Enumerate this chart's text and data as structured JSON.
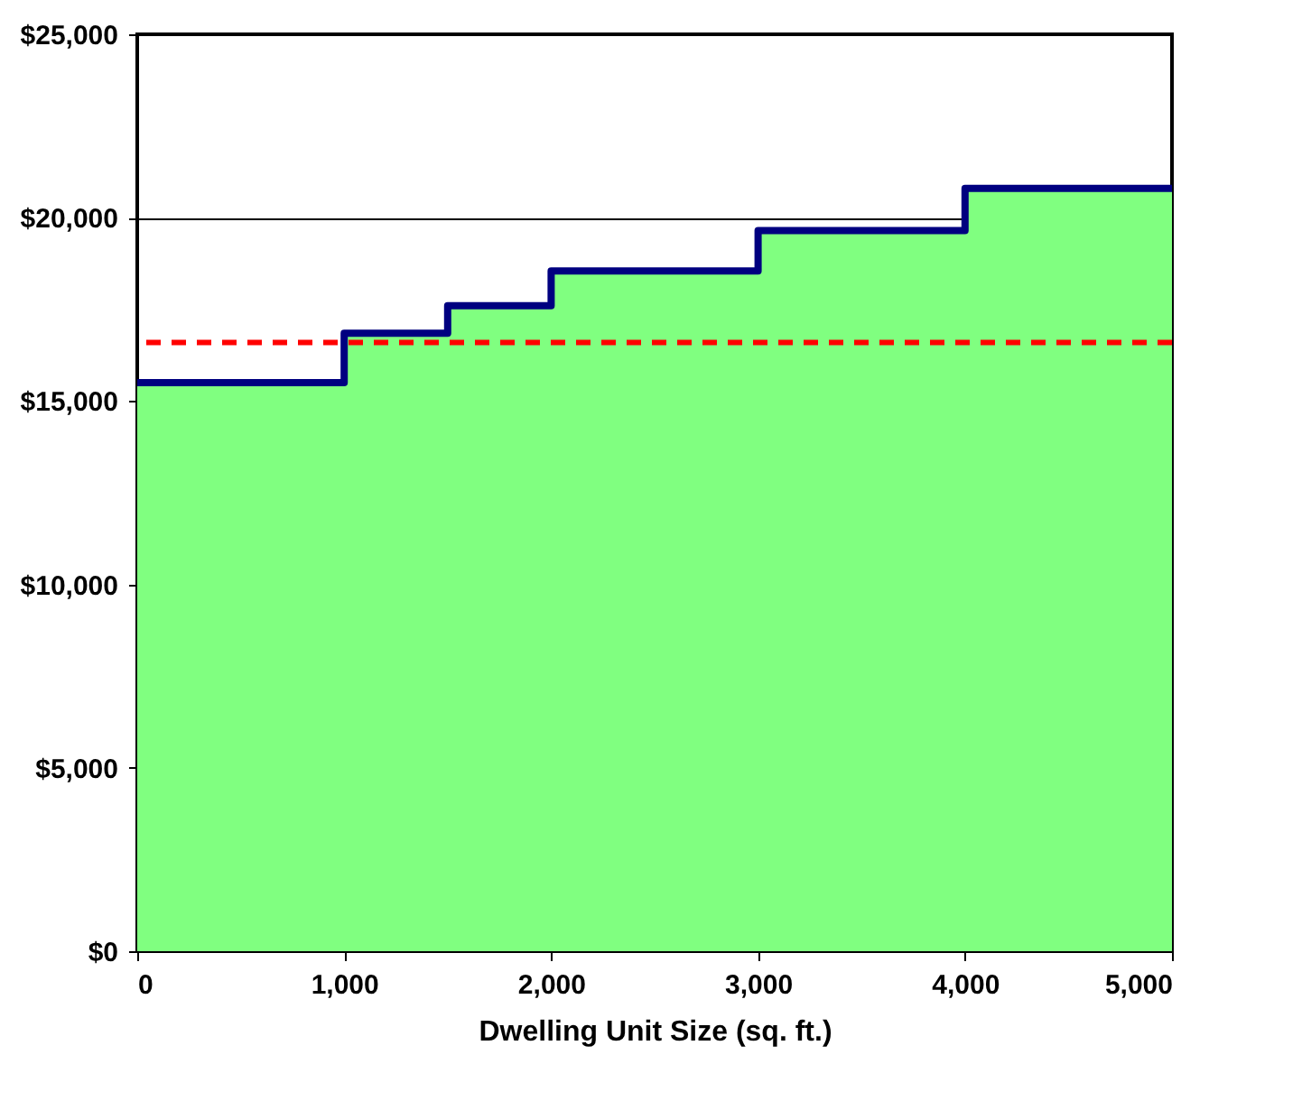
{
  "chart_data": {
    "type": "step",
    "xlabel": "Dwelling Unit Size (sq. ft.)",
    "x": [
      0,
      1000,
      1500,
      2000,
      3000,
      4000,
      5000
    ],
    "series": [
      {
        "type": "area",
        "color": "#80ff80",
        "values": [
          15500,
          16850,
          17600,
          18550,
          19650,
          20800,
          20800
        ]
      },
      {
        "color": "#000080",
        "line_style": "solid",
        "values": [
          15500,
          16850,
          17600,
          18550,
          19650,
          20800,
          20800
        ]
      }
    ],
    "xlim": [
      0,
      5000
    ],
    "xticks": [
      {
        "value": 0,
        "label": "0"
      },
      {
        "value": 1000,
        "label": "1,000"
      },
      {
        "value": 2000,
        "label": "2,000"
      },
      {
        "value": 3000,
        "label": "3,000"
      },
      {
        "value": 4000,
        "label": "4,000"
      },
      {
        "value": 5000,
        "label": "5,000"
      }
    ],
    "ylim": [
      0,
      25000
    ],
    "yticks": [
      {
        "value": 0,
        "label": "$0"
      },
      {
        "value": 5000,
        "label": "$5,000"
      },
      {
        "value": 10000,
        "label": "$10,000"
      },
      {
        "value": 15000,
        "label": "$15,000"
      },
      {
        "value": 20000,
        "label": "$20,000"
      },
      {
        "value": 25000,
        "label": "$25,000"
      }
    ],
    "ref_lines": [
      {
        "axis": "y",
        "value": 16600,
        "color": "#ff0000",
        "line_style": "dashed"
      }
    ],
    "grid": "y"
  }
}
